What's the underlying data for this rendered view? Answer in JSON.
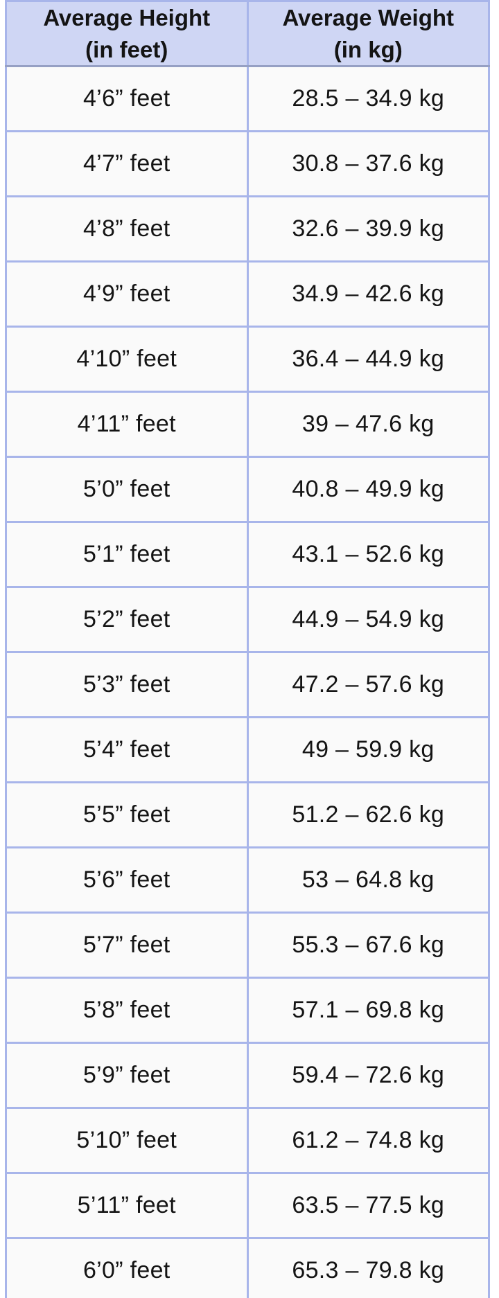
{
  "chart_data": {
    "type": "table",
    "columns": [
      {
        "line1": "Average Height",
        "line2": "(in feet)"
      },
      {
        "line1": "Average Weight",
        "line2": "(in kg)"
      }
    ],
    "rows": [
      {
        "height": "4’6” feet",
        "weight": "28.5 – 34.9 kg"
      },
      {
        "height": "4’7” feet",
        "weight": "30.8 – 37.6 kg"
      },
      {
        "height": "4’8” feet",
        "weight": "32.6 – 39.9 kg"
      },
      {
        "height": "4’9” feet",
        "weight": "34.9 – 42.6 kg"
      },
      {
        "height": "4’10” feet",
        "weight": "36.4 – 44.9 kg"
      },
      {
        "height": "4’11” feet",
        "weight": "39 – 47.6 kg"
      },
      {
        "height": "5’0” feet",
        "weight": "40.8 – 49.9 kg"
      },
      {
        "height": "5’1” feet",
        "weight": "43.1 – 52.6 kg"
      },
      {
        "height": "5’2” feet",
        "weight": "44.9 – 54.9 kg"
      },
      {
        "height": "5’3” feet",
        "weight": "47.2 – 57.6 kg"
      },
      {
        "height": "5’4” feet",
        "weight": "49 – 59.9 kg"
      },
      {
        "height": "5’5” feet",
        "weight": "51.2 – 62.6 kg"
      },
      {
        "height": "5’6” feet",
        "weight": "53 – 64.8 kg"
      },
      {
        "height": "5’7” feet",
        "weight": "55.3 – 67.6 kg"
      },
      {
        "height": "5’8” feet",
        "weight": "57.1 – 69.8 kg"
      },
      {
        "height": "5’9” feet",
        "weight": "59.4 – 72.6 kg"
      },
      {
        "height": "5’10” feet",
        "weight": "61.2 – 74.8 kg"
      },
      {
        "height": "5’11” feet",
        "weight": "63.5 – 77.5 kg"
      },
      {
        "height": "6’0” feet",
        "weight": "65.3 – 79.8 kg"
      }
    ]
  },
  "colors": {
    "header_bg": "#cfd6f4",
    "border": "#a8b5ea",
    "row_bg": "#fafafa",
    "text": "#141414"
  }
}
